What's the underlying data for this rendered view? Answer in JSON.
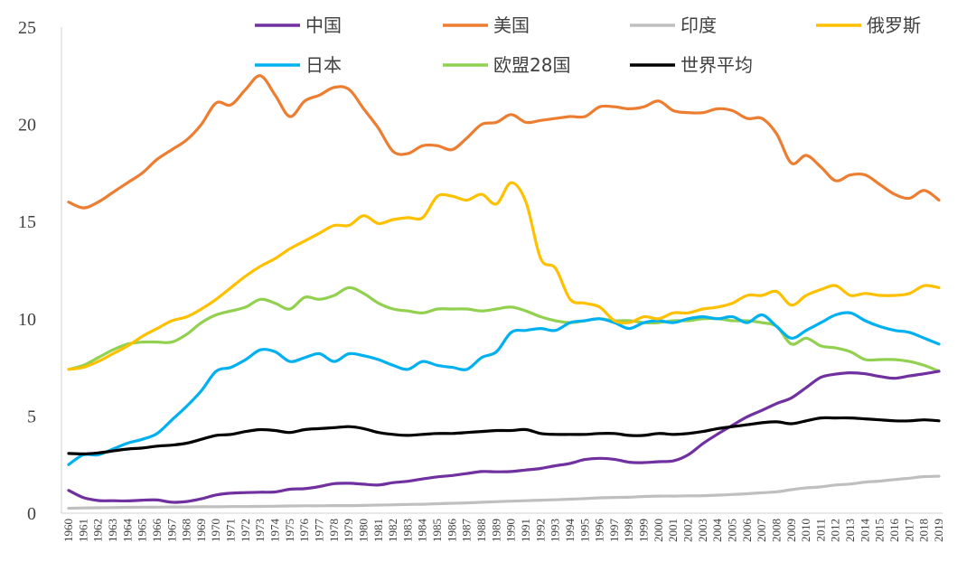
{
  "chart_data": {
    "type": "line",
    "title": "",
    "xlabel": "",
    "ylabel": "",
    "ylim": [
      0,
      25
    ],
    "yticks": [
      0,
      5,
      10,
      15,
      20,
      25
    ],
    "grid": false,
    "legend_position": "top",
    "x": [
      1960,
      1961,
      1962,
      1963,
      1964,
      1965,
      1966,
      1967,
      1968,
      1969,
      1970,
      1971,
      1972,
      1973,
      1974,
      1975,
      1976,
      1977,
      1978,
      1979,
      1980,
      1981,
      1982,
      1983,
      1984,
      1985,
      1986,
      1987,
      1988,
      1989,
      1990,
      1991,
      1992,
      1993,
      1994,
      1995,
      1996,
      1997,
      1998,
      1999,
      2000,
      2001,
      2002,
      2003,
      2004,
      2005,
      2006,
      2007,
      2008,
      2009,
      2010,
      2011,
      2012,
      2013,
      2014,
      2015,
      2016,
      2017,
      2018,
      2019
    ],
    "series": [
      {
        "name": "中国",
        "color": "#7030A0",
        "values": [
          1.17,
          0.8,
          0.65,
          0.64,
          0.63,
          0.67,
          0.68,
          0.56,
          0.6,
          0.74,
          0.94,
          1.03,
          1.06,
          1.08,
          1.09,
          1.23,
          1.26,
          1.37,
          1.52,
          1.54,
          1.49,
          1.45,
          1.57,
          1.64,
          1.76,
          1.87,
          1.94,
          2.04,
          2.14,
          2.13,
          2.14,
          2.22,
          2.3,
          2.44,
          2.56,
          2.76,
          2.82,
          2.77,
          2.62,
          2.6,
          2.65,
          2.69,
          3.0,
          3.58,
          4.07,
          4.52,
          4.96,
          5.29,
          5.64,
          5.93,
          6.46,
          6.99,
          7.15,
          7.22,
          7.17,
          7.03,
          6.94,
          7.06,
          7.17,
          7.3
        ]
      },
      {
        "name": "美国",
        "color": "#ED7D31",
        "values": [
          16.0,
          15.7,
          16.0,
          16.5,
          17.0,
          17.5,
          18.2,
          18.7,
          19.2,
          20.0,
          21.1,
          21.0,
          21.8,
          22.5,
          21.5,
          20.4,
          21.2,
          21.5,
          21.9,
          21.8,
          20.8,
          19.8,
          18.6,
          18.5,
          18.9,
          18.9,
          18.7,
          19.3,
          20.0,
          20.1,
          20.5,
          20.1,
          20.2,
          20.3,
          20.4,
          20.4,
          20.9,
          20.9,
          20.8,
          20.9,
          21.2,
          20.7,
          20.6,
          20.6,
          20.8,
          20.7,
          20.3,
          20.3,
          19.5,
          18.0,
          18.4,
          17.8,
          17.1,
          17.4,
          17.4,
          16.9,
          16.4,
          16.2,
          16.6,
          16.1
        ]
      },
      {
        "name": "印度",
        "color": "#BFBFBF",
        "values": [
          0.25,
          0.27,
          0.28,
          0.29,
          0.3,
          0.31,
          0.31,
          0.32,
          0.32,
          0.33,
          0.33,
          0.34,
          0.34,
          0.35,
          0.36,
          0.37,
          0.38,
          0.38,
          0.39,
          0.39,
          0.4,
          0.42,
          0.43,
          0.45,
          0.46,
          0.49,
          0.51,
          0.53,
          0.56,
          0.59,
          0.62,
          0.64,
          0.67,
          0.69,
          0.72,
          0.75,
          0.79,
          0.81,
          0.82,
          0.86,
          0.88,
          0.88,
          0.89,
          0.9,
          0.93,
          0.96,
          1.0,
          1.05,
          1.1,
          1.21,
          1.3,
          1.35,
          1.45,
          1.5,
          1.6,
          1.65,
          1.73,
          1.8,
          1.88,
          1.9
        ]
      },
      {
        "name": "俄罗斯",
        "color": "#FFC000",
        "values": [
          7.4,
          7.5,
          7.8,
          8.2,
          8.6,
          9.1,
          9.5,
          9.9,
          10.1,
          10.5,
          11.0,
          11.6,
          12.2,
          12.7,
          13.1,
          13.6,
          14.0,
          14.4,
          14.8,
          14.8,
          15.3,
          14.9,
          15.1,
          15.2,
          15.2,
          16.3,
          16.3,
          16.1,
          16.4,
          15.9,
          17.0,
          16.0,
          13.1,
          12.6,
          11.0,
          10.8,
          10.6,
          9.9,
          9.8,
          10.1,
          10.0,
          10.3,
          10.3,
          10.5,
          10.6,
          10.8,
          11.2,
          11.2,
          11.4,
          10.7,
          11.2,
          11.5,
          11.7,
          11.2,
          11.3,
          11.2,
          11.2,
          11.3,
          11.7,
          11.6
        ]
      },
      {
        "name": "日本",
        "color": "#00B0F0",
        "values": [
          2.5,
          3.0,
          3.0,
          3.3,
          3.6,
          3.8,
          4.1,
          4.8,
          5.5,
          6.3,
          7.3,
          7.5,
          7.9,
          8.4,
          8.3,
          7.8,
          8.0,
          8.2,
          7.8,
          8.2,
          8.1,
          7.9,
          7.6,
          7.4,
          7.8,
          7.6,
          7.5,
          7.4,
          8.0,
          8.3,
          9.3,
          9.4,
          9.5,
          9.4,
          9.8,
          9.9,
          10.0,
          9.8,
          9.5,
          9.8,
          9.9,
          9.8,
          10.0,
          10.1,
          10.0,
          10.1,
          9.8,
          10.2,
          9.6,
          9.0,
          9.4,
          9.8,
          10.2,
          10.3,
          9.9,
          9.6,
          9.4,
          9.3,
          9.0,
          8.7
        ]
      },
      {
        "name": "欧盟28国",
        "color": "#92D050",
        "values": [
          7.4,
          7.6,
          8.0,
          8.4,
          8.7,
          8.8,
          8.8,
          8.8,
          9.2,
          9.8,
          10.2,
          10.4,
          10.6,
          11.0,
          10.8,
          10.5,
          11.1,
          11.0,
          11.2,
          11.6,
          11.3,
          10.8,
          10.5,
          10.4,
          10.3,
          10.5,
          10.5,
          10.5,
          10.4,
          10.5,
          10.6,
          10.4,
          10.1,
          9.9,
          9.8,
          9.9,
          10.0,
          9.9,
          9.9,
          9.8,
          9.8,
          9.9,
          9.9,
          10.0,
          10.0,
          9.9,
          9.9,
          9.8,
          9.6,
          8.7,
          9.0,
          8.6,
          8.5,
          8.3,
          7.9,
          7.9,
          7.9,
          7.8,
          7.6,
          7.3
        ]
      },
      {
        "name": "世界平均",
        "color": "#000000",
        "values": [
          3.07,
          3.05,
          3.1,
          3.2,
          3.3,
          3.35,
          3.45,
          3.5,
          3.6,
          3.8,
          4.0,
          4.05,
          4.2,
          4.3,
          4.25,
          4.15,
          4.3,
          4.35,
          4.4,
          4.45,
          4.35,
          4.15,
          4.05,
          4.0,
          4.05,
          4.1,
          4.1,
          4.15,
          4.2,
          4.25,
          4.25,
          4.3,
          4.1,
          4.05,
          4.05,
          4.05,
          4.1,
          4.1,
          4.0,
          4.0,
          4.1,
          4.05,
          4.1,
          4.2,
          4.35,
          4.45,
          4.55,
          4.65,
          4.7,
          4.6,
          4.75,
          4.9,
          4.9,
          4.9,
          4.85,
          4.8,
          4.75,
          4.75,
          4.8,
          4.75
        ]
      }
    ]
  }
}
